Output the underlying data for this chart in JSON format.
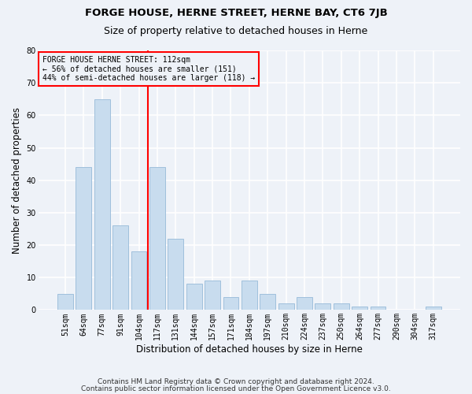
{
  "title1": "FORGE HOUSE, HERNE STREET, HERNE BAY, CT6 7JB",
  "title2": "Size of property relative to detached houses in Herne",
  "xlabel": "Distribution of detached houses by size in Herne",
  "ylabel": "Number of detached properties",
  "categories": [
    "51sqm",
    "64sqm",
    "77sqm",
    "91sqm",
    "104sqm",
    "117sqm",
    "131sqm",
    "144sqm",
    "157sqm",
    "171sqm",
    "184sqm",
    "197sqm",
    "210sqm",
    "224sqm",
    "237sqm",
    "250sqm",
    "264sqm",
    "277sqm",
    "290sqm",
    "304sqm",
    "317sqm"
  ],
  "values": [
    5,
    44,
    65,
    26,
    18,
    44,
    22,
    8,
    9,
    4,
    9,
    5,
    2,
    4,
    2,
    2,
    1,
    1,
    0,
    0,
    1
  ],
  "bar_color": "#c8dcee",
  "bar_edgecolor": "#a0c0dc",
  "bar_width": 0.85,
  "redline_index": 4.5,
  "annot_title": "FORGE HOUSE HERNE STREET: 112sqm",
  "annot_line1": "← 56% of detached houses are smaller (151)",
  "annot_line2": "44% of semi-detached houses are larger (118) →",
  "ylim": [
    0,
    80
  ],
  "yticks": [
    0,
    10,
    20,
    30,
    40,
    50,
    60,
    70,
    80
  ],
  "bg_color": "#eef2f8",
  "grid_color": "#ffffff",
  "footer1": "Contains HM Land Registry data © Crown copyright and database right 2024.",
  "footer2": "Contains public sector information licensed under the Open Government Licence v3.0.",
  "title1_fontsize": 9.5,
  "title2_fontsize": 9,
  "axis_label_fontsize": 8.5,
  "tick_fontsize": 7,
  "annot_fontsize": 7,
  "footer_fontsize": 6.5
}
